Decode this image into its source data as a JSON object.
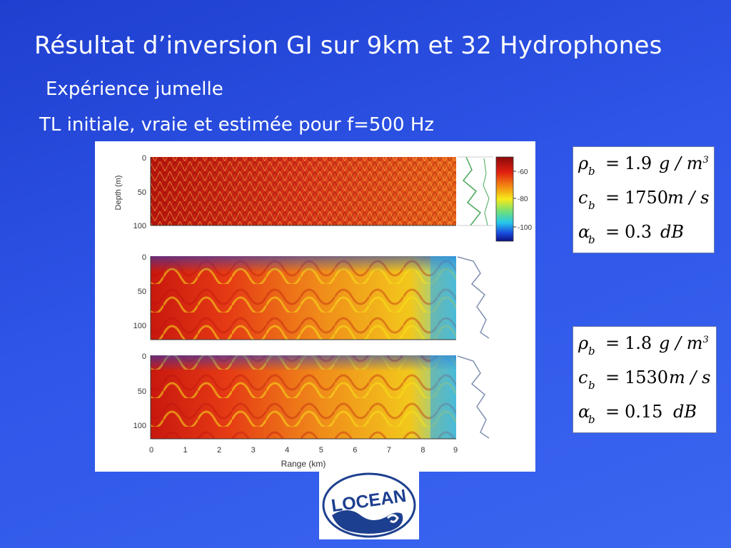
{
  "slide": {
    "title": "Résultat d’inversion GI sur 9km et 32 Hydrophones",
    "subtitle1": "Expérience jumelle",
    "subtitle2": "TL initiale, vraie et estimée  pour f=500 Hz"
  },
  "figure": {
    "y_axis_label": "Depth (m)",
    "x_axis_label": "Range (km)",
    "x_ticks": [
      "0",
      "1",
      "2",
      "3",
      "4",
      "5",
      "6",
      "7",
      "8",
      "9"
    ],
    "y_ticks": [
      "0",
      "50",
      "100"
    ],
    "colorbar_ticks": [
      "-60",
      "-80",
      "-100"
    ]
  },
  "params_box1": {
    "rho_label": "ρ",
    "rho_sub": "b",
    "rho_value": "1.9",
    "rho_unit": "g / m",
    "rho_unit_exp": "3",
    "c_label": "c",
    "c_sub": "b",
    "c_value": "1750",
    "c_unit": "m / s",
    "alpha_label": "α",
    "alpha_sub": "b",
    "alpha_value": "0.3",
    "alpha_unit": "dB",
    "equals": "="
  },
  "params_box2": {
    "rho_label": "ρ",
    "rho_sub": "b",
    "rho_value": "1.8",
    "rho_unit": "g / m",
    "rho_unit_exp": "3",
    "c_label": "c",
    "c_sub": "b",
    "c_value": "1530",
    "c_unit": "m / s",
    "alpha_label": "α",
    "alpha_sub": "b",
    "alpha_value": "0.15",
    "alpha_unit": "dB",
    "equals": "="
  },
  "logo": {
    "text": "LOCEAN"
  },
  "colors": {
    "background": "#2e55e8",
    "field_red": "#d81f10",
    "field_orange": "#f07a10",
    "field_yellow": "#f7e21a",
    "field_cyan": "#2fd0e8",
    "field_blue": "#1a3fd0",
    "logo_blue": "#1d3f8f"
  }
}
